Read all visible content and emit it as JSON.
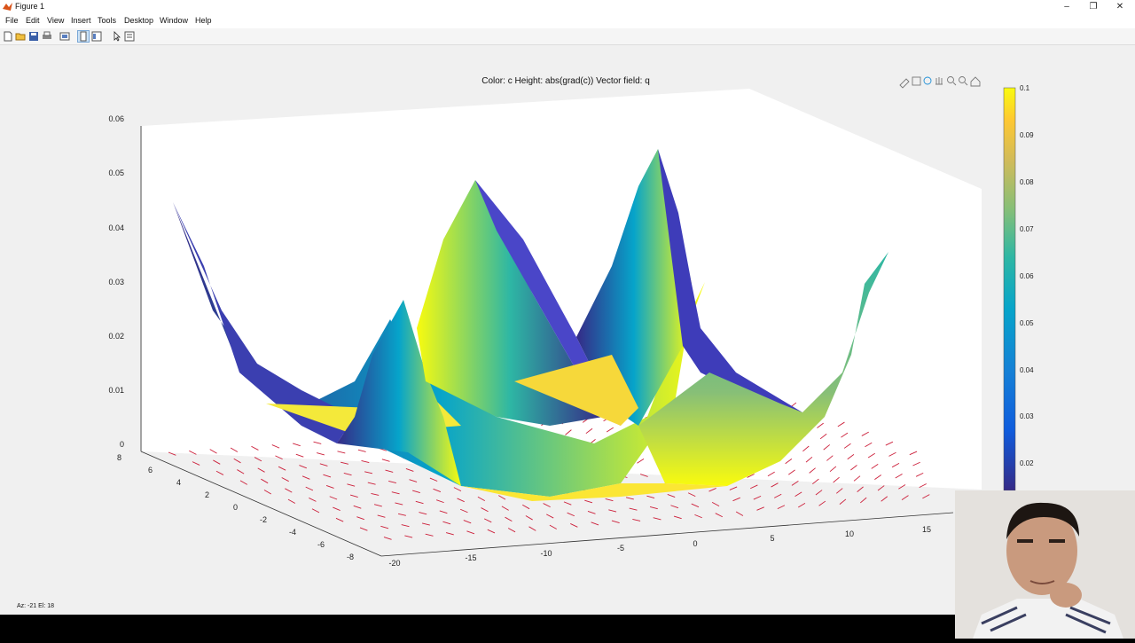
{
  "window": {
    "title": "Figure 1",
    "controls": [
      "–",
      "❐",
      "✕"
    ]
  },
  "menu": [
    "File",
    "Edit",
    "View",
    "Insert",
    "Tools",
    "Desktop",
    "Window",
    "Help"
  ],
  "axes_toolbar_icons": [
    "brush-icon",
    "datatip-icon",
    "rotate-icon",
    "pan-icon",
    "zoom-in-icon",
    "zoom-out-icon",
    "home-icon"
  ],
  "status": {
    "view": "Az: -21 El:   18"
  },
  "chart_data": {
    "type": "surface",
    "title": "Color: c  Height: abs(grad(c))  Vector field: q",
    "x_ticks": [
      "-20",
      "-15",
      "-10",
      "-5",
      "0",
      "5",
      "10",
      "15"
    ],
    "y_ticks": [
      "8",
      "6",
      "4",
      "2",
      "0",
      "-2",
      "-4",
      "-6",
      "-8"
    ],
    "z_ticks": [
      "0",
      "0.01",
      "0.02",
      "0.03",
      "0.04",
      "0.05",
      "0.06"
    ],
    "zlim": [
      0,
      0.06
    ],
    "colorbar": {
      "ticks": [
        "0.1",
        "0.09",
        "0.08",
        "0.07",
        "0.06",
        "0.05",
        "0.04",
        "0.03",
        "0.02"
      ],
      "colormap": "parula",
      "colors": [
        "#352a87",
        "#0f5cdd",
        "#1481d6",
        "#06a4ca",
        "#2eb7a4",
        "#87bf77",
        "#d1bb59",
        "#fec832",
        "#f9fb0e"
      ]
    },
    "vector_field_color": "#cc1f3a"
  }
}
